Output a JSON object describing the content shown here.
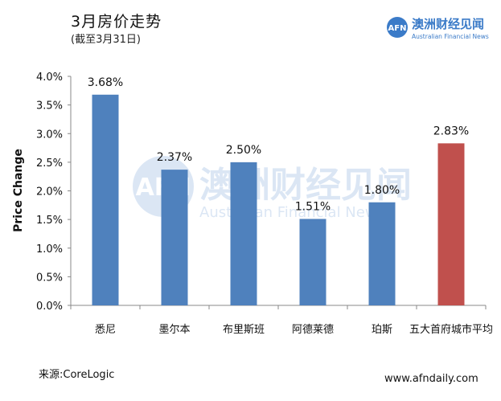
{
  "header": {
    "title": "3月房价走势",
    "subtitle": "(截至3月31日)"
  },
  "logo": {
    "mark": "AFN",
    "name_cn": "澳洲财经见闻",
    "name_en": "Australian Financial News"
  },
  "watermark": {
    "mark": "AFN",
    "name_cn": "澳洲财经见闻",
    "name_en": "Australian Financial News"
  },
  "footer": {
    "source": "来源:CoreLogic",
    "website": "www.afndaily.com"
  },
  "colors": {
    "bar_default": "#4F81BD",
    "bar_highlight": "#C0504D",
    "logo_blue": "#3B7BC8"
  },
  "chart_data": {
    "type": "bar",
    "categories": [
      "悉尼",
      "墨尔本",
      "布里斯班",
      "阿德莱德",
      "珀斯",
      "五大首府城市平均"
    ],
    "values": [
      3.68,
      2.37,
      2.5,
      1.51,
      1.8,
      2.83
    ],
    "value_labels": [
      "3.68%",
      "2.37%",
      "2.50%",
      "1.51%",
      "1.80%",
      "2.83%"
    ],
    "highlight_index": 5,
    "ylabel": "Price Change",
    "xlabel": "",
    "ylim": [
      0,
      4.0
    ],
    "yticks": [
      0,
      0.5,
      1.0,
      1.5,
      2.0,
      2.5,
      3.0,
      3.5,
      4.0
    ],
    "ytick_labels": [
      "0.0%",
      "0.5%",
      "1.0%",
      "1.5%",
      "2.0%",
      "2.5%",
      "3.0%",
      "3.5%",
      "4.0%"
    ],
    "grid": false,
    "legend": "none"
  }
}
